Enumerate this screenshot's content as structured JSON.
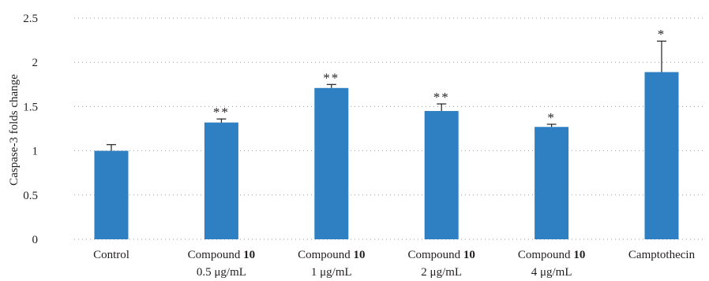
{
  "chart_data": {
    "type": "bar",
    "title": "",
    "xlabel": "",
    "ylabel": "Caspase-3 folds change",
    "ylim": [
      0,
      2.5
    ],
    "yticks": [
      {
        "value": 0,
        "label": "0"
      },
      {
        "value": 0.5,
        "label": "0.5"
      },
      {
        "value": 1,
        "label": "1"
      },
      {
        "value": 1.5,
        "label": "1.5"
      },
      {
        "value": 2,
        "label": "2"
      },
      {
        "value": 2.5,
        "label": "2.5"
      }
    ],
    "grid": true,
    "categories": [
      {
        "line1_prefix": "Control",
        "line1_bold": "",
        "line2": ""
      },
      {
        "line1_prefix": "Compound ",
        "line1_bold": "10",
        "line2": "0.5 μg/mL"
      },
      {
        "line1_prefix": "Compound ",
        "line1_bold": "10",
        "line2": "1 μg/mL"
      },
      {
        "line1_prefix": "Compound ",
        "line1_bold": "10",
        "line2": "2 μg/mL"
      },
      {
        "line1_prefix": "Compound ",
        "line1_bold": "10",
        "line2": "4 μg/mL"
      },
      {
        "line1_prefix": "Camptothecin",
        "line1_bold": "",
        "line2": ""
      }
    ],
    "values": [
      1.0,
      1.32,
      1.71,
      1.45,
      1.27,
      1.89
    ],
    "errors": [
      0.07,
      0.04,
      0.04,
      0.08,
      0.03,
      0.35
    ],
    "significance": [
      "",
      "**",
      "**",
      "**",
      "*",
      "*"
    ],
    "bar_color": "#2e80c2"
  }
}
